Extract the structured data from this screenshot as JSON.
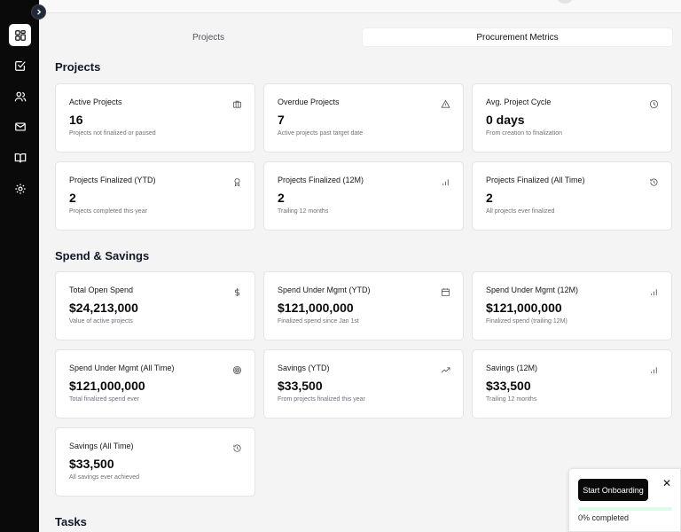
{
  "tabs": [
    {
      "label": "Projects",
      "active": false
    },
    {
      "label": "Procurement Metrics",
      "active": true
    }
  ],
  "sections": {
    "projects": "Projects",
    "spend": "Spend & Savings",
    "tasks": "Tasks"
  },
  "cards": [
    {
      "title": "Active Projects",
      "value": "16",
      "sub": "Projects not finalized or paused",
      "icon": "briefcase-icon"
    },
    {
      "title": "Overdue Projects",
      "value": "7",
      "sub": "Active projects past target date",
      "icon": "alert-triangle-icon"
    },
    {
      "title": "Avg. Project Cycle",
      "value": "0 days",
      "sub": "From creation to finalization",
      "icon": "clock-icon"
    },
    {
      "title": "Projects Finalized (YTD)",
      "value": "2",
      "sub": "Projects completed this year",
      "icon": "award-icon"
    },
    {
      "title": "Projects Finalized (12M)",
      "value": "2",
      "sub": "Trailing 12 months",
      "icon": "bar-chart-icon"
    },
    {
      "title": "Projects Finalized (All Time)",
      "value": "2",
      "sub": "All projects ever finalized",
      "icon": "history-icon"
    },
    {
      "title": "Total Open Spend",
      "value": "$24,213,000",
      "sub": "Value of active projects",
      "icon": "dollar-icon"
    },
    {
      "title": "Spend Under Mgmt (YTD)",
      "value": "$121,000,000",
      "sub": "Finalized spend since Jan 1st",
      "icon": "calendar-icon"
    },
    {
      "title": "Spend Under Mgmt (12M)",
      "value": "$121,000,000",
      "sub": "Finalized spend (trailing 12M)",
      "icon": "bar-chart-icon"
    },
    {
      "title": "Spend Under Mgmt (All Time)",
      "value": "$121,000,000",
      "sub": "Total finalized spend ever",
      "icon": "target-icon"
    },
    {
      "title": "Savings (YTD)",
      "value": "$33,500",
      "sub": "From projects finalized this year",
      "icon": "trending-up-icon"
    },
    {
      "title": "Savings (12M)",
      "value": "$33,500",
      "sub": "Trailing 12 months",
      "icon": "bar-chart-icon"
    },
    {
      "title": "Savings (All Time)",
      "value": "$33,500",
      "sub": "All savings ever achieved",
      "icon": "history-icon"
    }
  ],
  "sidebar": {
    "items": [
      {
        "icon": "dashboard-icon",
        "active": true
      },
      {
        "icon": "checkbox-icon",
        "active": false
      },
      {
        "icon": "users-icon",
        "active": false
      },
      {
        "icon": "mail-icon",
        "active": false
      },
      {
        "icon": "book-icon",
        "active": false
      },
      {
        "icon": "gear-icon",
        "active": false
      }
    ]
  },
  "onboarding": {
    "button_label": "Start Onboarding",
    "close_label": "✕",
    "progress_text": "0% completed",
    "progress_value": 0
  },
  "colors": {
    "sidebar_bg": "#0a0a0a",
    "page_bg": "#f4f4f5",
    "card_bg": "#ffffff",
    "progress_track": "#dcfce7",
    "progress_fill": "#16a34a"
  }
}
